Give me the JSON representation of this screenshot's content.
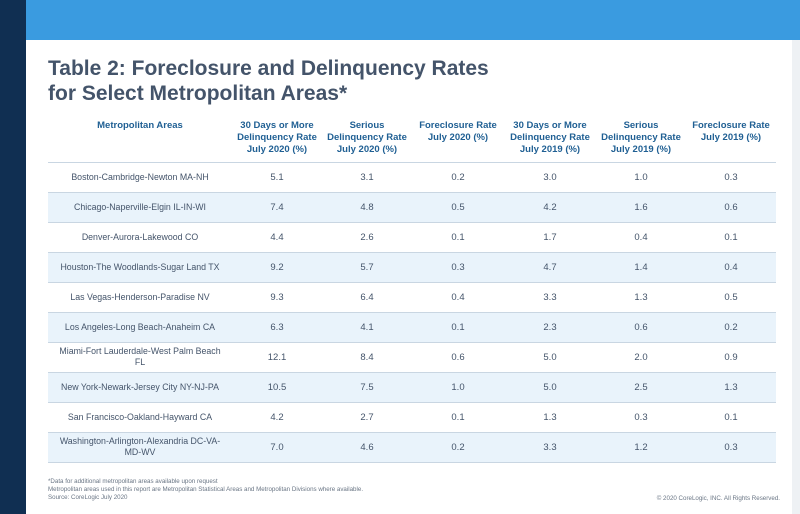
{
  "title": {
    "line1": "Table 2: Foreclosure and Delinquency Rates",
    "line2": "for Select Metropolitan Areas*"
  },
  "table": {
    "headers": [
      "Metropolitan Areas",
      "30 Days or More Delinquency Rate July 2020 (%)",
      "Serious Delinquency Rate July 2020 (%)",
      "Foreclosure Rate July 2020 (%)",
      "30 Days or More Delinquency Rate July 2019 (%)",
      "Serious Delinquency Rate July 2019 (%)",
      "Foreclosure Rate July 2019 (%)"
    ],
    "rows": [
      [
        "Boston-Cambridge-Newton MA-NH",
        "5.1",
        "3.1",
        "0.2",
        "3.0",
        "1.0",
        "0.3"
      ],
      [
        "Chicago-Naperville-Elgin IL-IN-WI",
        "7.4",
        "4.8",
        "0.5",
        "4.2",
        "1.6",
        "0.6"
      ],
      [
        "Denver-Aurora-Lakewood CO",
        "4.4",
        "2.6",
        "0.1",
        "1.7",
        "0.4",
        "0.1"
      ],
      [
        "Houston-The Woodlands-Sugar Land TX",
        "9.2",
        "5.7",
        "0.3",
        "4.7",
        "1.4",
        "0.4"
      ],
      [
        "Las Vegas-Henderson-Paradise NV",
        "9.3",
        "6.4",
        "0.4",
        "3.3",
        "1.3",
        "0.5"
      ],
      [
        "Los Angeles-Long Beach-Anaheim CA",
        "6.3",
        "4.1",
        "0.1",
        "2.3",
        "0.6",
        "0.2"
      ],
      [
        "Miami-Fort Lauderdale-West Palm Beach FL",
        "12.1",
        "8.4",
        "0.6",
        "5.0",
        "2.0",
        "0.9"
      ],
      [
        "New York-Newark-Jersey City NY-NJ-PA",
        "10.5",
        "7.5",
        "1.0",
        "5.0",
        "2.5",
        "1.3"
      ],
      [
        "San Francisco-Oakland-Hayward CA",
        "4.2",
        "2.7",
        "0.1",
        "1.3",
        "0.3",
        "0.1"
      ],
      [
        "Washington-Arlington-Alexandria DC-VA-MD-WV",
        "7.0",
        "4.6",
        "0.2",
        "3.3",
        "1.2",
        "0.3"
      ]
    ]
  },
  "footnotes": {
    "line1": "*Data for additional metropolitan areas available upon request",
    "line2": "Metropolitan areas used in this report are Metropolitan Statistical Areas and Metropolitan Divisions where available.",
    "line3": "Source: CoreLogic July 2020"
  },
  "copyright": "© 2020 CoreLogic, INC. All Rights Reserved.",
  "colors": {
    "top_bar": "#3a9be0",
    "left_rail": "#102f52",
    "header_text": "#1f5f93",
    "alt_row": "#e9f3fb"
  }
}
